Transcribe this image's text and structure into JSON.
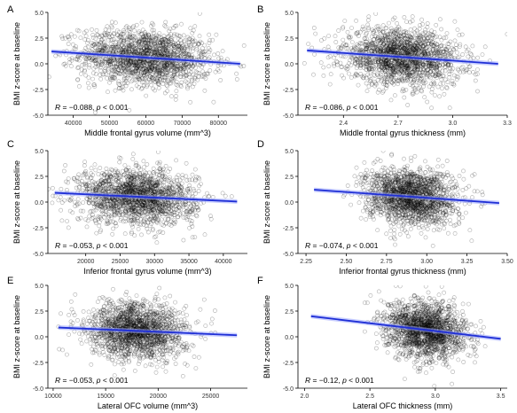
{
  "figure": {
    "point_color": "#000000",
    "line_color": "#1f2fd6",
    "band_color": "#9aa6ff"
  },
  "chart_data": [
    {
      "panel": "A",
      "type": "scatter",
      "title": "",
      "xlabel": "Middle frontal gyrus volume (mm^3)",
      "ylabel": "BMI z-score at baseline",
      "xlim": [
        33000,
        88000
      ],
      "ylim": [
        -5,
        5
      ],
      "xticks": [
        40000,
        50000,
        60000,
        70000,
        80000
      ],
      "xtick_labels": [
        "40000",
        "50000",
        "60000",
        "70000",
        "80000"
      ],
      "yticks": [
        -5,
        -2.5,
        0,
        2.5,
        5
      ],
      "ytick_labels": [
        "-5.0",
        "-2.5",
        "0.0",
        "2.5",
        "5.0"
      ],
      "x_center": 60000,
      "x_spread": 9000,
      "fit": {
        "x": [
          34000,
          86000
        ],
        "y": [
          1.2,
          0.0
        ]
      },
      "annotation": {
        "R_label": "R",
        "R_value": " = −0.088, ",
        "p_label": "p",
        "p_value": " < 0.001"
      },
      "grid": false
    },
    {
      "panel": "B",
      "type": "scatter",
      "title": "",
      "xlabel": "Middle frontal gyrus thickness (mm)",
      "ylabel": "BMI z-score at baseline",
      "xlim": [
        2.15,
        3.3
      ],
      "ylim": [
        -5,
        5
      ],
      "xticks": [
        2.4,
        2.7,
        3.0,
        3.3
      ],
      "xtick_labels": [
        "2.4",
        "2.7",
        "3.0",
        "3.3"
      ],
      "yticks": [
        -5,
        -2.5,
        0,
        2.5,
        5
      ],
      "ytick_labels": [
        "-5.0",
        "-2.5",
        "0.0",
        "2.5",
        "5.0"
      ],
      "x_center": 2.72,
      "x_spread": 0.16,
      "fit": {
        "x": [
          2.2,
          3.25
        ],
        "y": [
          1.3,
          0.0
        ]
      },
      "annotation": {
        "R_label": "R",
        "R_value": " = −0.086, ",
        "p_label": "p",
        "p_value": " < 0.001"
      },
      "grid": false
    },
    {
      "panel": "C",
      "type": "scatter",
      "title": "",
      "xlabel": "Inferior frontal gyrus volume (mm^3)",
      "ylabel": "BMI z-score at baseline",
      "xlim": [
        14500,
        43500
      ],
      "ylim": [
        -5,
        5
      ],
      "xticks": [
        20000,
        25000,
        30000,
        35000,
        40000
      ],
      "xtick_labels": [
        "20000",
        "25000",
        "30000",
        "35000",
        "40000"
      ],
      "yticks": [
        -5,
        -2.5,
        0,
        2.5,
        5
      ],
      "ytick_labels": [
        "-5.0",
        "-2.5",
        "0.0",
        "2.5",
        "5.0"
      ],
      "x_center": 27500,
      "x_spread": 4200,
      "fit": {
        "x": [
          15500,
          42000
        ],
        "y": [
          0.9,
          0.05
        ]
      },
      "annotation": {
        "R_label": "R",
        "R_value": " = −0.053, ",
        "p_label": "p",
        "p_value": " < 0.001"
      },
      "grid": false
    },
    {
      "panel": "D",
      "type": "scatter",
      "title": "",
      "xlabel": "Inferior frontal gyrus thickness (mm)",
      "ylabel": "BMI z-score at baseline",
      "xlim": [
        2.2,
        3.5
      ],
      "ylim": [
        -5,
        5
      ],
      "xticks": [
        2.25,
        2.5,
        2.75,
        3.0,
        3.25,
        3.5
      ],
      "xtick_labels": [
        "2.25",
        "2.50",
        "2.75",
        "3.00",
        "3.25",
        "3.50"
      ],
      "yticks": [
        -5,
        -2.5,
        0,
        2.5,
        5
      ],
      "ytick_labels": [
        "-5.0",
        "-2.5",
        "0.0",
        "2.5",
        "5.0"
      ],
      "x_center": 2.9,
      "x_spread": 0.14,
      "fit": {
        "x": [
          2.3,
          3.45
        ],
        "y": [
          1.2,
          -0.1
        ]
      },
      "annotation": {
        "R_label": "R",
        "R_value": " = −0.074, ",
        "p_label": "p",
        "p_value": " < 0.001"
      },
      "grid": false
    },
    {
      "panel": "E",
      "type": "scatter",
      "title": "",
      "xlabel": "Lateral OFC volume (mm^3)",
      "ylabel": "BMI z-score at baseline",
      "xlim": [
        9500,
        28500
      ],
      "ylim": [
        -5,
        5
      ],
      "xticks": [
        10000,
        15000,
        20000,
        25000
      ],
      "xtick_labels": [
        "10000",
        "15000",
        "20000",
        "25000"
      ],
      "yticks": [
        -5,
        -2.5,
        0,
        2.5,
        5
      ],
      "ytick_labels": [
        "-5.0",
        "-2.5",
        "0.0",
        "2.5",
        "5.0"
      ],
      "x_center": 18000,
      "x_spread": 2300,
      "fit": {
        "x": [
          10500,
          27500
        ],
        "y": [
          0.9,
          0.15
        ]
      },
      "annotation": {
        "R_label": "R",
        "R_value": " = −0.053, ",
        "p_label": "p",
        "p_value": " < 0.001"
      },
      "grid": false
    },
    {
      "panel": "F",
      "type": "scatter",
      "title": "",
      "xlabel": "Lateral OFC thickness (mm)",
      "ylabel": "BMI z-score at baseline",
      "xlim": [
        1.95,
        3.55
      ],
      "ylim": [
        -5,
        5
      ],
      "xticks": [
        2.0,
        2.5,
        3.0,
        3.5
      ],
      "xtick_labels": [
        "2.0",
        "2.5",
        "3.0",
        "3.5"
      ],
      "yticks": [
        -5,
        -2.5,
        0,
        2.5,
        5
      ],
      "ytick_labels": [
        "-5.0",
        "-2.5",
        "0.0",
        "2.5",
        "5.0"
      ],
      "x_center": 2.93,
      "x_spread": 0.15,
      "fit": {
        "x": [
          2.05,
          3.5
        ],
        "y": [
          2.0,
          -0.2
        ]
      },
      "annotation": {
        "R_label": "R",
        "R_value": " = −0.12, ",
        "p_label": "p",
        "p_value": " < 0.001"
      },
      "grid": false
    }
  ]
}
